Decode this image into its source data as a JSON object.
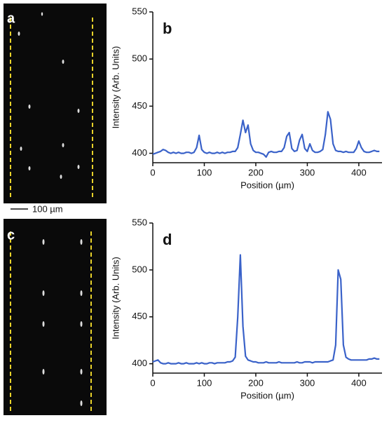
{
  "images": [
    {
      "label": "a"
    },
    {
      "label": "c"
    }
  ],
  "scale_bar": "100 µm",
  "chart_data": [
    {
      "type": "line",
      "label": "b",
      "y_label": "Intensity (Arb. Units)",
      "x_label": "Position (µm)",
      "xlim": [
        0,
        445
      ],
      "ylim": [
        390,
        550
      ],
      "xticks": [
        0,
        100,
        200,
        300,
        400
      ],
      "yticks": [
        400,
        450,
        500,
        550
      ],
      "x": [
        0,
        5,
        10,
        15,
        20,
        25,
        30,
        35,
        40,
        45,
        50,
        55,
        60,
        65,
        70,
        75,
        80,
        85,
        90,
        95,
        100,
        105,
        110,
        115,
        120,
        125,
        130,
        135,
        140,
        145,
        150,
        155,
        160,
        165,
        170,
        175,
        180,
        185,
        190,
        195,
        200,
        205,
        210,
        215,
        220,
        225,
        230,
        235,
        240,
        245,
        250,
        255,
        260,
        265,
        270,
        275,
        280,
        285,
        290,
        295,
        300,
        305,
        310,
        315,
        320,
        325,
        330,
        335,
        340,
        345,
        350,
        355,
        360,
        365,
        370,
        375,
        380,
        385,
        390,
        395,
        400,
        405,
        410,
        415,
        420,
        425,
        430,
        435,
        440
      ],
      "series": [
        {
          "color": "#3a62c9",
          "values": [
            399,
            400,
            401,
            402,
            404,
            403,
            401,
            400,
            401,
            400,
            401,
            400,
            400,
            401,
            401,
            400,
            401,
            406,
            419,
            404,
            401,
            400,
            401,
            400,
            400,
            401,
            400,
            401,
            400,
            401,
            401,
            402,
            402,
            406,
            420,
            435,
            422,
            430,
            410,
            403,
            401,
            401,
            400,
            399,
            396,
            401,
            402,
            401,
            401,
            402,
            402,
            406,
            418,
            422,
            405,
            402,
            403,
            414,
            420,
            405,
            402,
            410,
            403,
            401,
            401,
            402,
            404,
            420,
            444,
            436,
            410,
            403,
            402,
            402,
            401,
            402,
            401,
            401,
            401,
            405,
            413,
            406,
            402,
            401,
            401,
            402,
            403,
            402,
            402
          ]
        }
      ]
    },
    {
      "type": "line",
      "label": "d",
      "y_label": "Intensity (Arb. Units)",
      "x_label": "Position (µm)",
      "xlim": [
        0,
        445
      ],
      "ylim": [
        390,
        550
      ],
      "xticks": [
        0,
        100,
        200,
        300,
        400
      ],
      "yticks": [
        400,
        450,
        500,
        550
      ],
      "x": [
        0,
        5,
        10,
        15,
        20,
        25,
        30,
        35,
        40,
        45,
        50,
        55,
        60,
        65,
        70,
        75,
        80,
        85,
        90,
        95,
        100,
        105,
        110,
        115,
        120,
        125,
        130,
        135,
        140,
        145,
        150,
        155,
        160,
        165,
        170,
        175,
        180,
        185,
        190,
        195,
        200,
        205,
        210,
        215,
        220,
        225,
        230,
        235,
        240,
        245,
        250,
        255,
        260,
        265,
        270,
        275,
        280,
        285,
        290,
        295,
        300,
        305,
        310,
        315,
        320,
        325,
        330,
        335,
        340,
        345,
        350,
        355,
        360,
        365,
        370,
        375,
        380,
        385,
        390,
        395,
        400,
        405,
        410,
        415,
        420,
        425,
        430,
        435,
        440
      ],
      "series": [
        {
          "color": "#3a62c9",
          "values": [
            402,
            403,
            404,
            401,
            400,
            400,
            401,
            400,
            400,
            400,
            401,
            400,
            400,
            401,
            400,
            400,
            400,
            401,
            400,
            401,
            400,
            400,
            401,
            401,
            400,
            401,
            401,
            401,
            401,
            402,
            402,
            403,
            407,
            450,
            516,
            440,
            408,
            404,
            403,
            402,
            402,
            401,
            401,
            401,
            402,
            401,
            401,
            401,
            401,
            402,
            401,
            401,
            401,
            401,
            401,
            401,
            402,
            401,
            401,
            402,
            402,
            402,
            401,
            402,
            402,
            402,
            402,
            402,
            402,
            403,
            404,
            420,
            500,
            490,
            420,
            407,
            405,
            404,
            404,
            404,
            404,
            404,
            404,
            404,
            405,
            405,
            406,
            405,
            405
          ]
        }
      ]
    }
  ]
}
